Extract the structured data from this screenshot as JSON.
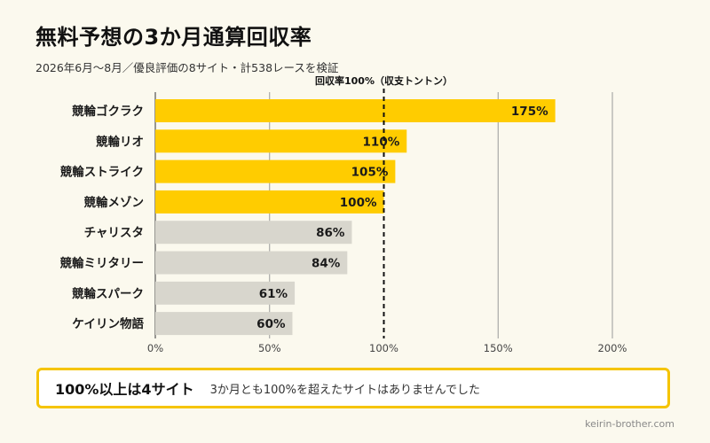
{
  "title": "無料予想の3か月通算回収率",
  "subtitle": "2026年6月〜8月／優良評価の8サイト・計538レースを検証",
  "reference_label": "回収率100%（収支トントン）",
  "callout": {
    "heading": "100%以上は4サイト",
    "body": "3か月とも100%を超えたサイトはありませんでした"
  },
  "footer": "keirin-brother.com",
  "colors": {
    "highlight": "#ffcc00",
    "muted": "#d8d6cd",
    "accent_border": "#f5c400",
    "background": "#fbf9ee"
  },
  "chart_data": {
    "type": "bar",
    "orientation": "horizontal",
    "categories": [
      "競輪ゴクラク",
      "競輪リオ",
      "競輪ストライク",
      "競輪メゾン",
      "チャリスタ",
      "競輪ミリタリー",
      "競輪スパーク",
      "ケイリン物語"
    ],
    "values": [
      175,
      110,
      105,
      100,
      86,
      84,
      61,
      60
    ],
    "value_labels": [
      "175%",
      "110%",
      "105%",
      "100%",
      "86%",
      "84%",
      "61%",
      "60%"
    ],
    "xlim": [
      0,
      200
    ],
    "ticks": [
      0,
      50,
      100,
      150,
      200
    ],
    "tick_labels": [
      "0%",
      "50%",
      "100%",
      "150%",
      "200%"
    ],
    "reference_value": 100,
    "grid": true,
    "legend": "none"
  }
}
